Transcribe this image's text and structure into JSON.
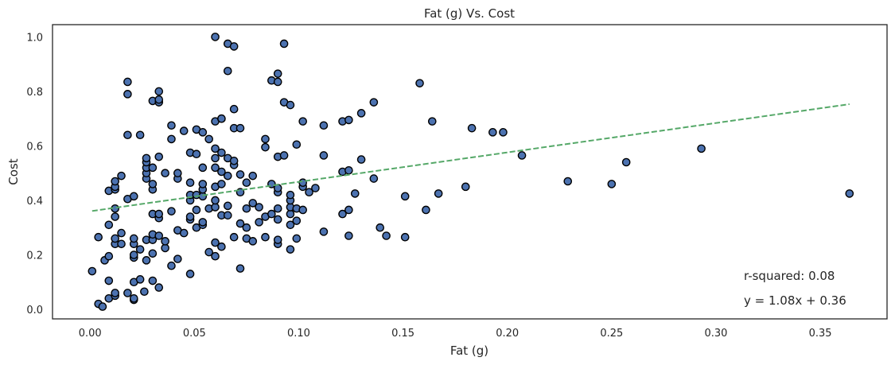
{
  "chart_data": {
    "type": "scatter",
    "title": "Fat (g) Vs. Cost",
    "xlabel": "Fat (g)",
    "ylabel": "Cost",
    "xlim": [
      -0.018,
      0.382
    ],
    "ylim": [
      -0.035,
      1.045
    ],
    "xticks": [
      0.0,
      0.05,
      0.1,
      0.15,
      0.2,
      0.25,
      0.3,
      0.35
    ],
    "xtick_labels": [
      "0.00",
      "0.05",
      "0.10",
      "0.15",
      "0.20",
      "0.25",
      "0.30",
      "0.35"
    ],
    "yticks": [
      0.0,
      0.2,
      0.4,
      0.6,
      0.8,
      1.0
    ],
    "ytick_labels": [
      "0.0",
      "0.2",
      "0.4",
      "0.6",
      "0.8",
      "1.0"
    ],
    "grid": false,
    "point_color": "#4c72b0",
    "point_edge_color": "#000000",
    "fit_color": "#55a868",
    "fit_line": {
      "slope": 1.08,
      "intercept": 0.36,
      "x_range": [
        0.001,
        0.364
      ]
    },
    "annotations": [
      "r-squared: 0.08",
      "y = 1.08x + 0.36"
    ],
    "points": [
      [
        0.001,
        0.14
      ],
      [
        0.004,
        0.02
      ],
      [
        0.004,
        0.265
      ],
      [
        0.006,
        0.01
      ],
      [
        0.007,
        0.18
      ],
      [
        0.009,
        0.04
      ],
      [
        0.009,
        0.105
      ],
      [
        0.009,
        0.195
      ],
      [
        0.009,
        0.31
      ],
      [
        0.009,
        0.435
      ],
      [
        0.012,
        0.05
      ],
      [
        0.012,
        0.06
      ],
      [
        0.012,
        0.24
      ],
      [
        0.012,
        0.26
      ],
      [
        0.012,
        0.34
      ],
      [
        0.012,
        0.37
      ],
      [
        0.012,
        0.44
      ],
      [
        0.012,
        0.45
      ],
      [
        0.012,
        0.47
      ],
      [
        0.015,
        0.24
      ],
      [
        0.015,
        0.28
      ],
      [
        0.015,
        0.49
      ],
      [
        0.018,
        0.06
      ],
      [
        0.018,
        0.405
      ],
      [
        0.018,
        0.64
      ],
      [
        0.018,
        0.79
      ],
      [
        0.018,
        0.835
      ],
      [
        0.021,
        0.035
      ],
      [
        0.021,
        0.04
      ],
      [
        0.021,
        0.1
      ],
      [
        0.021,
        0.19
      ],
      [
        0.021,
        0.2
      ],
      [
        0.021,
        0.24
      ],
      [
        0.021,
        0.26
      ],
      [
        0.021,
        0.415
      ],
      [
        0.024,
        0.11
      ],
      [
        0.024,
        0.22
      ],
      [
        0.024,
        0.64
      ],
      [
        0.026,
        0.065
      ],
      [
        0.027,
        0.18
      ],
      [
        0.027,
        0.255
      ],
      [
        0.027,
        0.48
      ],
      [
        0.027,
        0.5
      ],
      [
        0.027,
        0.52
      ],
      [
        0.027,
        0.54
      ],
      [
        0.027,
        0.555
      ],
      [
        0.03,
        0.105
      ],
      [
        0.03,
        0.205
      ],
      [
        0.03,
        0.255
      ],
      [
        0.03,
        0.275
      ],
      [
        0.03,
        0.35
      ],
      [
        0.03,
        0.44
      ],
      [
        0.03,
        0.46
      ],
      [
        0.03,
        0.52
      ],
      [
        0.03,
        0.765
      ],
      [
        0.033,
        0.08
      ],
      [
        0.033,
        0.27
      ],
      [
        0.033,
        0.335
      ],
      [
        0.033,
        0.35
      ],
      [
        0.033,
        0.56
      ],
      [
        0.033,
        0.76
      ],
      [
        0.033,
        0.77
      ],
      [
        0.033,
        0.8
      ],
      [
        0.036,
        0.225
      ],
      [
        0.036,
        0.25
      ],
      [
        0.036,
        0.5
      ],
      [
        0.039,
        0.16
      ],
      [
        0.039,
        0.36
      ],
      [
        0.039,
        0.625
      ],
      [
        0.039,
        0.675
      ],
      [
        0.042,
        0.185
      ],
      [
        0.042,
        0.29
      ],
      [
        0.042,
        0.48
      ],
      [
        0.042,
        0.5
      ],
      [
        0.045,
        0.28
      ],
      [
        0.045,
        0.655
      ],
      [
        0.048,
        0.13
      ],
      [
        0.048,
        0.33
      ],
      [
        0.048,
        0.34
      ],
      [
        0.048,
        0.4
      ],
      [
        0.048,
        0.42
      ],
      [
        0.048,
        0.465
      ],
      [
        0.048,
        0.575
      ],
      [
        0.051,
        0.3
      ],
      [
        0.051,
        0.365
      ],
      [
        0.051,
        0.42
      ],
      [
        0.051,
        0.57
      ],
      [
        0.051,
        0.66
      ],
      [
        0.054,
        0.31
      ],
      [
        0.054,
        0.32
      ],
      [
        0.054,
        0.415
      ],
      [
        0.054,
        0.44
      ],
      [
        0.054,
        0.46
      ],
      [
        0.054,
        0.52
      ],
      [
        0.054,
        0.65
      ],
      [
        0.057,
        0.21
      ],
      [
        0.057,
        0.37
      ],
      [
        0.057,
        0.625
      ],
      [
        0.06,
        0.195
      ],
      [
        0.06,
        0.245
      ],
      [
        0.06,
        0.375
      ],
      [
        0.06,
        0.4
      ],
      [
        0.06,
        0.45
      ],
      [
        0.06,
        0.52
      ],
      [
        0.06,
        0.555
      ],
      [
        0.06,
        0.59
      ],
      [
        0.06,
        0.69
      ],
      [
        0.06,
        1.0
      ],
      [
        0.063,
        0.23
      ],
      [
        0.063,
        0.345
      ],
      [
        0.063,
        0.46
      ],
      [
        0.063,
        0.505
      ],
      [
        0.063,
        0.575
      ],
      [
        0.063,
        0.7
      ],
      [
        0.063,
        0.7
      ],
      [
        0.066,
        0.345
      ],
      [
        0.066,
        0.38
      ],
      [
        0.066,
        0.49
      ],
      [
        0.066,
        0.555
      ],
      [
        0.066,
        0.875
      ],
      [
        0.066,
        0.975
      ],
      [
        0.069,
        0.265
      ],
      [
        0.069,
        0.53
      ],
      [
        0.069,
        0.545
      ],
      [
        0.069,
        0.665
      ],
      [
        0.069,
        0.735
      ],
      [
        0.069,
        0.965
      ],
      [
        0.072,
        0.15
      ],
      [
        0.072,
        0.315
      ],
      [
        0.072,
        0.43
      ],
      [
        0.072,
        0.495
      ],
      [
        0.072,
        0.665
      ],
      [
        0.075,
        0.26
      ],
      [
        0.075,
        0.3
      ],
      [
        0.075,
        0.37
      ],
      [
        0.075,
        0.465
      ],
      [
        0.078,
        0.25
      ],
      [
        0.078,
        0.39
      ],
      [
        0.078,
        0.49
      ],
      [
        0.081,
        0.32
      ],
      [
        0.081,
        0.375
      ],
      [
        0.084,
        0.265
      ],
      [
        0.084,
        0.34
      ],
      [
        0.084,
        0.595
      ],
      [
        0.084,
        0.625
      ],
      [
        0.087,
        0.35
      ],
      [
        0.087,
        0.46
      ],
      [
        0.087,
        0.84
      ],
      [
        0.09,
        0.24
      ],
      [
        0.09,
        0.255
      ],
      [
        0.09,
        0.33
      ],
      [
        0.09,
        0.37
      ],
      [
        0.09,
        0.43
      ],
      [
        0.09,
        0.445
      ],
      [
        0.09,
        0.56
      ],
      [
        0.09,
        0.835
      ],
      [
        0.09,
        0.865
      ],
      [
        0.093,
        0.565
      ],
      [
        0.093,
        0.76
      ],
      [
        0.093,
        0.975
      ],
      [
        0.096,
        0.22
      ],
      [
        0.096,
        0.31
      ],
      [
        0.096,
        0.35
      ],
      [
        0.096,
        0.375
      ],
      [
        0.096,
        0.4
      ],
      [
        0.096,
        0.42
      ],
      [
        0.096,
        0.75
      ],
      [
        0.099,
        0.26
      ],
      [
        0.099,
        0.325
      ],
      [
        0.099,
        0.37
      ],
      [
        0.099,
        0.605
      ],
      [
        0.102,
        0.365
      ],
      [
        0.102,
        0.45
      ],
      [
        0.102,
        0.465
      ],
      [
        0.102,
        0.69
      ],
      [
        0.105,
        0.43
      ],
      [
        0.108,
        0.445
      ],
      [
        0.112,
        0.285
      ],
      [
        0.112,
        0.565
      ],
      [
        0.112,
        0.675
      ],
      [
        0.121,
        0.35
      ],
      [
        0.121,
        0.505
      ],
      [
        0.121,
        0.69
      ],
      [
        0.124,
        0.27
      ],
      [
        0.124,
        0.365
      ],
      [
        0.124,
        0.51
      ],
      [
        0.124,
        0.695
      ],
      [
        0.127,
        0.425
      ],
      [
        0.13,
        0.55
      ],
      [
        0.13,
        0.72
      ],
      [
        0.136,
        0.48
      ],
      [
        0.136,
        0.76
      ],
      [
        0.139,
        0.3
      ],
      [
        0.142,
        0.27
      ],
      [
        0.151,
        0.265
      ],
      [
        0.151,
        0.415
      ],
      [
        0.158,
        0.83
      ],
      [
        0.161,
        0.365
      ],
      [
        0.164,
        0.69
      ],
      [
        0.167,
        0.425
      ],
      [
        0.18,
        0.45
      ],
      [
        0.183,
        0.665
      ],
      [
        0.193,
        0.65
      ],
      [
        0.198,
        0.65
      ],
      [
        0.207,
        0.565
      ],
      [
        0.229,
        0.47
      ],
      [
        0.25,
        0.46
      ],
      [
        0.257,
        0.54
      ],
      [
        0.293,
        0.59
      ],
      [
        0.364,
        0.425
      ]
    ]
  }
}
